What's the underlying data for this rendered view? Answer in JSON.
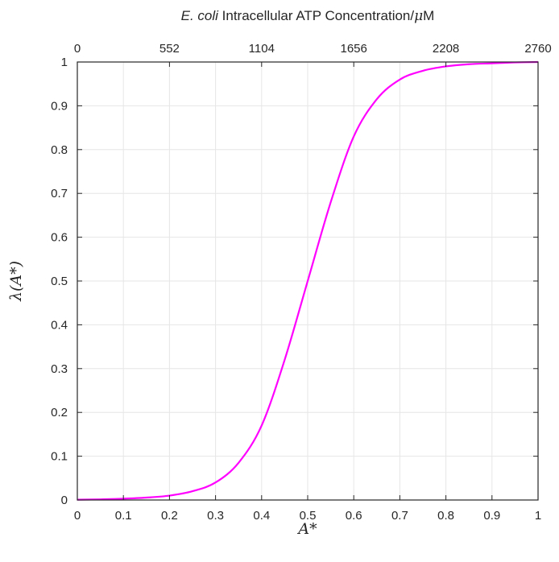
{
  "chart_data": {
    "type": "line",
    "title_prefix": "E. coli",
    "title_rest": " Intracellular ATP Concentration/",
    "title_mu": "μ",
    "title_unit": "M",
    "xlabel": "A*",
    "ylabel": "λ(A*)",
    "xlim": [
      0,
      1
    ],
    "ylim": [
      0,
      1
    ],
    "grid": true,
    "x_ticks": [
      "0",
      "0.1",
      "0.2",
      "0.3",
      "0.4",
      "0.5",
      "0.6",
      "0.7",
      "0.8",
      "0.9",
      "1"
    ],
    "y_ticks": [
      "0",
      "0.1",
      "0.2",
      "0.3",
      "0.4",
      "0.5",
      "0.6",
      "0.7",
      "0.8",
      "0.9",
      "1"
    ],
    "top_ticks": [
      "0",
      "552",
      "1104",
      "1656",
      "2208",
      "2760"
    ],
    "series": [
      {
        "color": "#ff00ff",
        "x": [
          0,
          0.05,
          0.1,
          0.15,
          0.2,
          0.25,
          0.3,
          0.35,
          0.4,
          0.45,
          0.5,
          0.55,
          0.6,
          0.65,
          0.7,
          0.75,
          0.8,
          0.85,
          0.9,
          0.95,
          1
        ],
        "y": [
          0.0007,
          0.0015,
          0.003,
          0.0055,
          0.01,
          0.02,
          0.04,
          0.085,
          0.17,
          0.32,
          0.5,
          0.68,
          0.83,
          0.915,
          0.96,
          0.98,
          0.99,
          0.995,
          0.997,
          0.999,
          1.0
        ]
      }
    ]
  }
}
